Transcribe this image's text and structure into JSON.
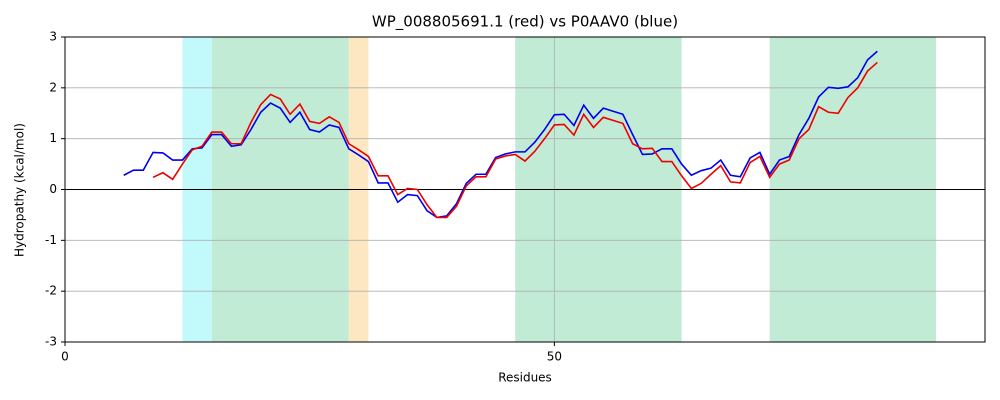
{
  "chart_data": {
    "type": "line",
    "title": "WP_008805691.1 (red) vs P0AAV0 (blue)",
    "x_label": "Residues",
    "y_label": "Hydropathy (kcal/mol)",
    "xlim": [
      0,
      94
    ],
    "ylim": [
      -3,
      3
    ],
    "xticks": [
      0,
      50
    ],
    "yticks": [
      -3,
      -2,
      -1,
      0,
      1,
      2,
      3
    ],
    "grid": true,
    "hline": 0,
    "regions": [
      {
        "start": 12,
        "end": 15,
        "color": "#c2fafb"
      },
      {
        "start": 15,
        "end": 29,
        "color": "#c1ebd4"
      },
      {
        "start": 29,
        "end": 31,
        "color": "#fde7c3"
      },
      {
        "start": 46,
        "end": 63,
        "color": "#c1ebd4"
      },
      {
        "start": 72,
        "end": 89,
        "color": "#c1ebd4"
      }
    ],
    "x": [
      6,
      7,
      8,
      9,
      10,
      11,
      12,
      13,
      14,
      15,
      16,
      17,
      18,
      19,
      20,
      21,
      22,
      23,
      24,
      25,
      26,
      27,
      28,
      29,
      30,
      31,
      32,
      33,
      34,
      35,
      36,
      37,
      38,
      39,
      40,
      41,
      42,
      43,
      44,
      45,
      46,
      47,
      48,
      49,
      50,
      51,
      52,
      53,
      54,
      55,
      56,
      57,
      58,
      59,
      60,
      61,
      62,
      63,
      64,
      65,
      66,
      67,
      68,
      69,
      70,
      71,
      72,
      73,
      74,
      75,
      76,
      77,
      78,
      79,
      80,
      81,
      82,
      83
    ],
    "series": [
      {
        "name": "P0AAV0",
        "color": "#0000ee",
        "values": [
          0.28,
          0.38,
          0.38,
          0.73,
          0.72,
          0.58,
          0.58,
          0.8,
          0.82,
          1.08,
          1.08,
          0.85,
          0.88,
          1.18,
          1.52,
          1.7,
          1.6,
          1.32,
          1.52,
          1.18,
          1.13,
          1.27,
          1.22,
          0.8,
          0.68,
          0.55,
          0.13,
          0.13,
          -0.25,
          -0.1,
          -0.12,
          -0.42,
          -0.55,
          -0.52,
          -0.28,
          0.12,
          0.3,
          0.3,
          0.63,
          0.7,
          0.74,
          0.74,
          0.93,
          1.18,
          1.47,
          1.48,
          1.26,
          1.66,
          1.4,
          1.6,
          1.54,
          1.48,
          1.08,
          0.69,
          0.7,
          0.8,
          0.8,
          0.5,
          0.28,
          0.37,
          0.42,
          0.58,
          0.28,
          0.25,
          0.62,
          0.73,
          0.3,
          0.58,
          0.65,
          1.08,
          1.4,
          1.82,
          2.01,
          1.99,
          2.02,
          2.2,
          2.55,
          2.72
        ]
      },
      {
        "name": "WP_008805691.1",
        "color": "#ee0000",
        "values": [
          null,
          null,
          null,
          0.24,
          0.33,
          0.2,
          0.5,
          0.78,
          0.85,
          1.13,
          1.13,
          0.9,
          0.9,
          1.32,
          1.67,
          1.87,
          1.78,
          1.48,
          1.68,
          1.34,
          1.3,
          1.43,
          1.32,
          0.9,
          0.78,
          0.65,
          0.27,
          0.27,
          -0.1,
          0.02,
          0.0,
          -0.3,
          -0.55,
          -0.55,
          -0.33,
          0.07,
          0.25,
          0.25,
          0.6,
          0.66,
          0.69,
          0.56,
          0.75,
          1.0,
          1.27,
          1.28,
          1.07,
          1.48,
          1.22,
          1.42,
          1.36,
          1.3,
          0.9,
          0.8,
          0.81,
          0.55,
          0.55,
          0.27,
          0.02,
          0.12,
          0.3,
          0.47,
          0.15,
          0.13,
          0.53,
          0.65,
          0.24,
          0.5,
          0.58,
          1.0,
          1.18,
          1.63,
          1.52,
          1.5,
          1.81,
          2.0,
          2.33,
          2.5
        ]
      }
    ]
  }
}
